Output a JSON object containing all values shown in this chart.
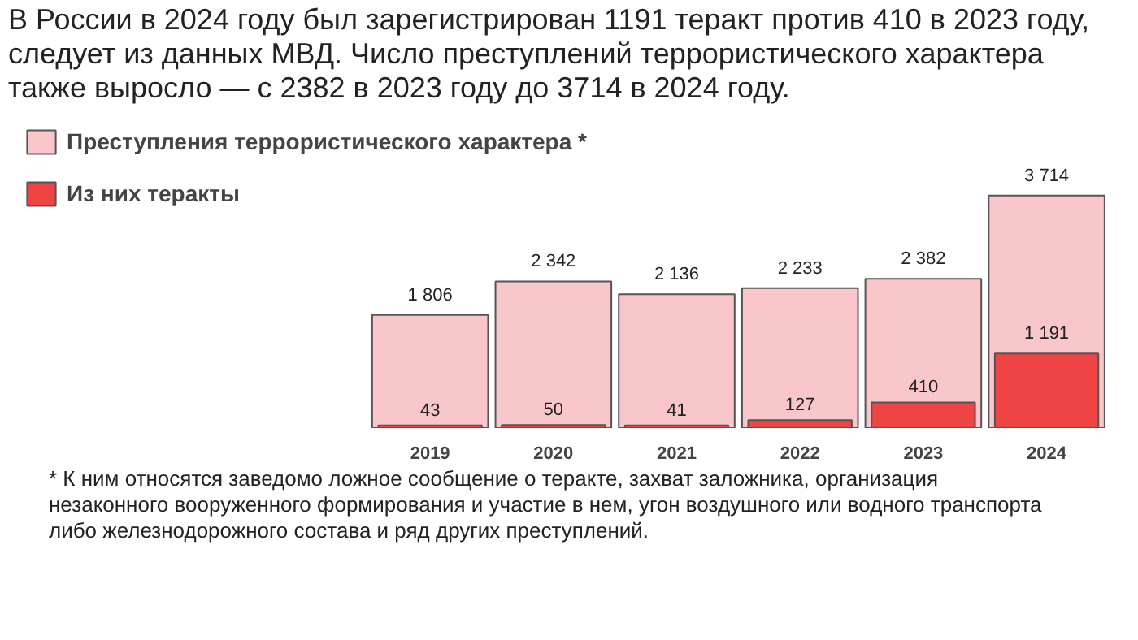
{
  "chart_data": {
    "type": "bar",
    "title": "В России в 2024 году был зарегистрирован 1191 теракт против 410 в 2023 году, следует из данных МВД. Число преступлений террористического характера также выросло — с 2382 в 2023 году до 3714 в 2024 году.",
    "categories": [
      "2019",
      "2020",
      "2021",
      "2022",
      "2023",
      "2024"
    ],
    "series": [
      {
        "name": "Преступления террористического характера *",
        "color": "#f9c6ca",
        "values": [
          1806,
          2342,
          2136,
          2233,
          2382,
          3714
        ],
        "value_labels": [
          "1 806",
          "2 342",
          "2 136",
          "2 233",
          "2 382",
          "3 714"
        ]
      },
      {
        "name": "Из них теракты",
        "color": "#ef4444",
        "values": [
          43,
          50,
          41,
          127,
          410,
          1191
        ],
        "value_labels": [
          "43",
          "50",
          "41",
          "127",
          "410",
          "1 191"
        ]
      }
    ],
    "legend": "top left",
    "grid": false,
    "tick_labels": "x",
    "annotations": [
      "* К ним относятся заведомо ложное сообщение о теракте, захват заложника, организация незаконного вооруженного формирования и участие в нем, угон воздушного или водного транспорта либо железнодорожного состава и ряд других преступлений."
    ]
  }
}
